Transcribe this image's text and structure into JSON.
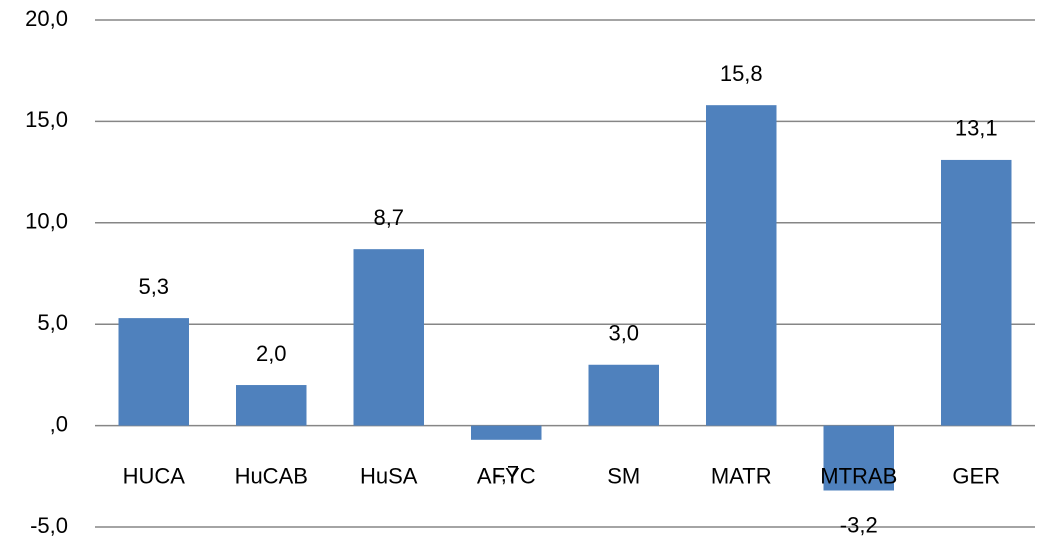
{
  "chart_data": {
    "type": "bar",
    "categories": [
      "HUCA",
      "HuCAB",
      "HuSA",
      "AFYC",
      "SM",
      "MATR",
      "MTRAB",
      "GER"
    ],
    "values": [
      5.3,
      2.0,
      8.7,
      -0.7,
      3.0,
      15.8,
      -3.2,
      13.1
    ],
    "value_labels": [
      "5,3",
      "2,0",
      "8,7",
      "-,7",
      "3,0",
      "15,8",
      "-3,2",
      "13,1"
    ],
    "color": "#4f81bd",
    "ylim": [
      -5,
      20
    ],
    "yticks": [
      {
        "value": -5,
        "label": "-5,0"
      },
      {
        "value": 0,
        "label": ",0"
      },
      {
        "value": 5,
        "label": "5,0"
      },
      {
        "value": 10,
        "label": "10,0"
      },
      {
        "value": 15,
        "label": "15,0"
      },
      {
        "value": 20,
        "label": "20,0"
      }
    ],
    "grid": true
  }
}
